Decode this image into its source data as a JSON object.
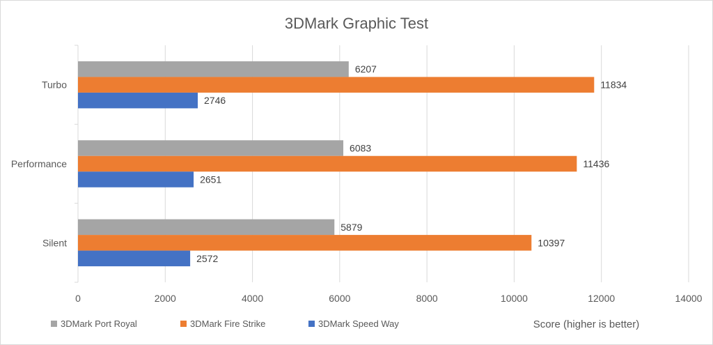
{
  "chart_data": {
    "type": "bar",
    "orientation": "horizontal",
    "title": "3DMark Graphic Test",
    "xlabel": "Score (higher is better)",
    "ylabel": "",
    "xlim": [
      0,
      14000
    ],
    "xticks": [
      0,
      2000,
      4000,
      6000,
      8000,
      10000,
      12000,
      14000
    ],
    "grid": true,
    "legend_position": "bottom",
    "categories": [
      "Turbo",
      "Performance",
      "Silent"
    ],
    "series": [
      {
        "name": "3DMark Port Royal",
        "color": "#a5a5a5",
        "values": [
          6207,
          6083,
          5879
        ]
      },
      {
        "name": "3DMark Fire Strike",
        "color": "#ed7d31",
        "values": [
          11834,
          11436,
          10397
        ]
      },
      {
        "name": "3DMark Speed Way",
        "color": "#4472c4",
        "values": [
          2746,
          2651,
          2572
        ]
      }
    ]
  }
}
